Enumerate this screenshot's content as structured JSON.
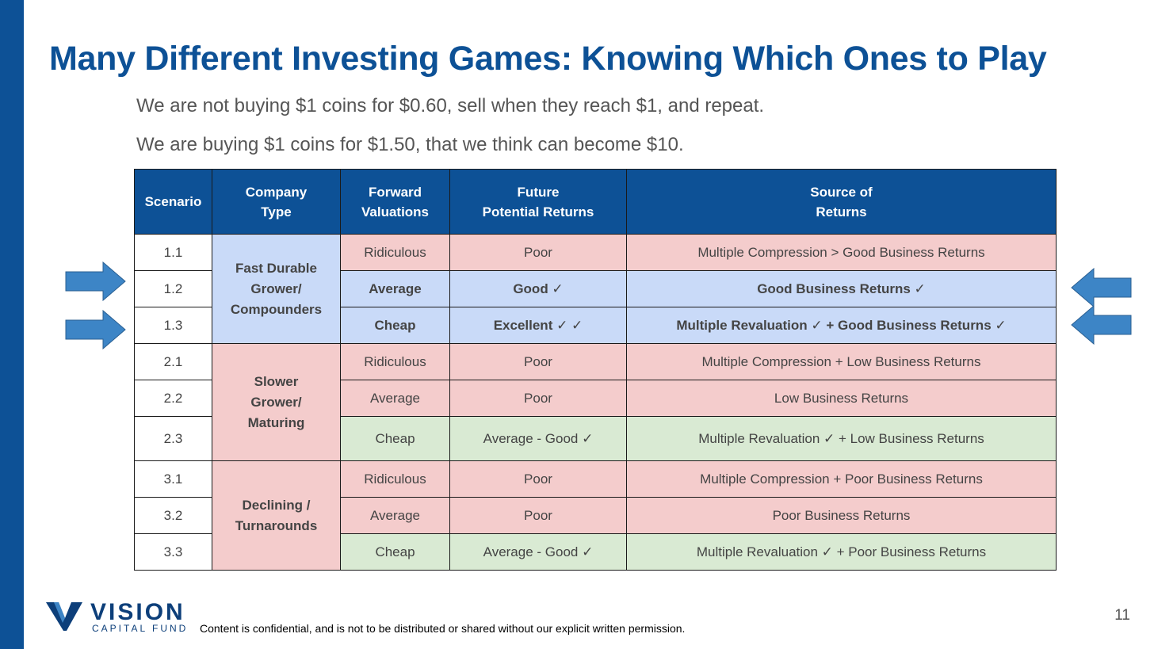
{
  "title": "Many Different Investing Games: Knowing Which Ones to Play",
  "subtitle_lines": [
    "We are not buying $1 coins for $0.60, sell when they reach $1, and repeat.",
    "We are buying $1 coins for $1.50, that we think can become $10."
  ],
  "table": {
    "headers": [
      "Scenario",
      "Company\nType",
      "Forward\nValuations",
      "Future\nPotential Returns",
      "Source of\nReturns"
    ],
    "groups": [
      {
        "type": "Fast Durable\nGrower/\nCompounders",
        "color": "#c9daf8"
      },
      {
        "type": "Slower\nGrower/\nMaturing",
        "color": "#f4cccc"
      },
      {
        "type": "Declining /\nTurnarounds",
        "color": "#f4cccc"
      }
    ],
    "rows": [
      {
        "scenario": "1.1",
        "valuation": "Ridiculous",
        "returns": "Poor",
        "source": "Multiple Compression > Good Business Returns"
      },
      {
        "scenario": "1.2",
        "valuation": "Average",
        "returns": "Good ✓",
        "source": "Good Business Returns ✓"
      },
      {
        "scenario": "1.3",
        "valuation": "Cheap",
        "returns": "Excellent ✓ ✓",
        "source": "Multiple Revaluation ✓  + Good Business Returns ✓"
      },
      {
        "scenario": "2.1",
        "valuation": "Ridiculous",
        "returns": "Poor",
        "source": "Multiple Compression + Low Business Returns"
      },
      {
        "scenario": "2.2",
        "valuation": "Average",
        "returns": "Poor",
        "source": "Low Business Returns"
      },
      {
        "scenario": "2.3",
        "valuation": "Cheap",
        "returns": "Average - Good ✓",
        "source": "Multiple Revaluation ✓  + Low Business Returns"
      },
      {
        "scenario": "3.1",
        "valuation": "Ridiculous",
        "returns": "Poor",
        "source": "Multiple Compression + Poor Business Returns"
      },
      {
        "scenario": "3.2",
        "valuation": "Average",
        "returns": "Poor",
        "source": "Poor Business Returns"
      },
      {
        "scenario": "3.3",
        "valuation": "Cheap",
        "returns": "Average - Good ✓",
        "source": "Multiple Revaluation ✓  + Poor Business Returns"
      }
    ]
  },
  "colors": {
    "brand_blue": "#0d5196",
    "header_bg": "#0d5196",
    "pink": "#f4cccc",
    "light_blue": "#c9daf8",
    "green": "#d9ead3",
    "arrow": "#3d85c6"
  },
  "icons": {
    "left_arrows": "arrow-right-icon",
    "right_arrows": "arrow-left-icon"
  },
  "logo": {
    "word": "VISION",
    "sub": "CAPITAL FUND"
  },
  "footer": "Content is confidential, and is not to be distributed or shared without our explicit written permission.",
  "page_number": "11"
}
